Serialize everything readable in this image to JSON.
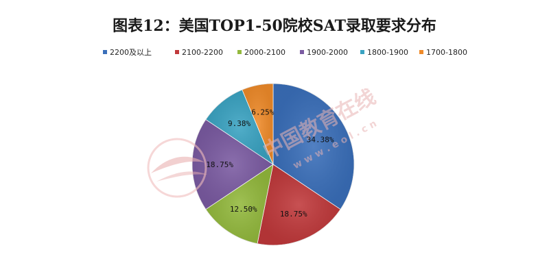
{
  "chart_data": {
    "type": "pie",
    "title": "图表12：美国TOP1-50院校SAT录取要求分布",
    "legend_position": "top",
    "categories": [
      "2200及以上",
      "2100-2200",
      "2000-2100",
      "1900-2000",
      "1800-1900",
      "1700-1800"
    ],
    "values": [
      34.38,
      18.75,
      12.5,
      18.75,
      9.38,
      6.25
    ],
    "value_labels": [
      "34.38%",
      "18.75%",
      "12.50%",
      "18.75%",
      "9.38%",
      "6.25%"
    ],
    "colors": [
      "#3a6fba",
      "#c0393b",
      "#93b93d",
      "#7b5ba2",
      "#3aa3c2",
      "#ef8b2a"
    ]
  },
  "watermark": {
    "text": "中国教育在线",
    "subtext": "w w w . e o l . c n"
  }
}
